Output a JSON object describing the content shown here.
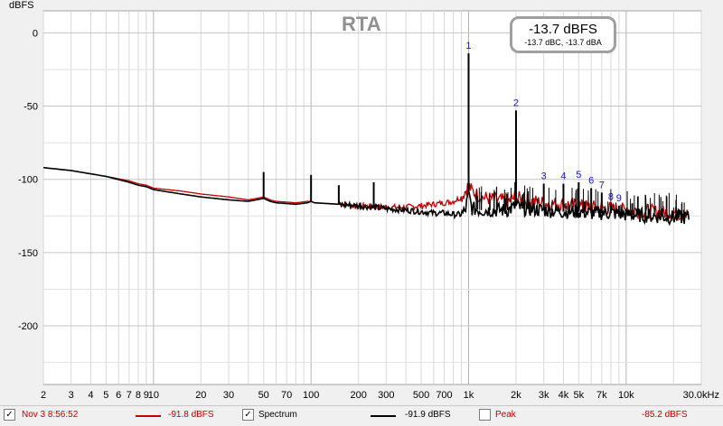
{
  "chart_data": {
    "type": "line",
    "title": "RTA",
    "ylabel": "dBFS",
    "xlabel": "",
    "x_scale": "log",
    "xlim": [
      2,
      30000
    ],
    "ylim": [
      -240,
      15
    ],
    "x_ticks": [
      {
        "v": 2,
        "label": "2"
      },
      {
        "v": 3,
        "label": "3"
      },
      {
        "v": 4,
        "label": "4"
      },
      {
        "v": 5,
        "label": "5"
      },
      {
        "v": 6,
        "label": "6"
      },
      {
        "v": 7,
        "label": "7"
      },
      {
        "v": 8,
        "label": "8"
      },
      {
        "v": 9,
        "label": "9"
      },
      {
        "v": 10,
        "label": "10"
      },
      {
        "v": 20,
        "label": "20"
      },
      {
        "v": 30,
        "label": "30"
      },
      {
        "v": 50,
        "label": "50"
      },
      {
        "v": 70,
        "label": "70"
      },
      {
        "v": 100,
        "label": "100"
      },
      {
        "v": 200,
        "label": "200"
      },
      {
        "v": 300,
        "label": "300"
      },
      {
        "v": 500,
        "label": "500"
      },
      {
        "v": 700,
        "label": "700"
      },
      {
        "v": 1000,
        "label": "1k"
      },
      {
        "v": 2000,
        "label": "2k"
      },
      {
        "v": 3000,
        "label": "3k"
      },
      {
        "v": 4000,
        "label": "4k"
      },
      {
        "v": 5000,
        "label": "5k"
      },
      {
        "v": 7000,
        "label": "7k"
      },
      {
        "v": 10000,
        "label": "10k"
      },
      {
        "v": 30000,
        "label": "30.0kHz"
      }
    ],
    "y_ticks": [
      {
        "v": 0,
        "label": "0"
      },
      {
        "v": -50,
        "label": "-50"
      },
      {
        "v": -100,
        "label": "-100"
      },
      {
        "v": -150,
        "label": "-150"
      },
      {
        "v": -200,
        "label": "-200"
      }
    ],
    "grid": true,
    "series": [
      {
        "name": "Nov 3 8:56:52",
        "color": "#c00000",
        "x": [
          2,
          3,
          5,
          7,
          8,
          9,
          10,
          15,
          20,
          30,
          40,
          45,
          50,
          55,
          60,
          80,
          95,
          100,
          105,
          150,
          200,
          300,
          400,
          500,
          600,
          700,
          800,
          900,
          950,
          1000,
          1050,
          1200,
          1500,
          1800,
          2000,
          2200,
          3000,
          4000,
          5000,
          6000,
          8000,
          10000,
          15000,
          20000,
          25000
        ],
        "y": [
          -92,
          -94,
          -98,
          -101,
          -103,
          -104,
          -106,
          -108,
          -110,
          -112,
          -114,
          -113,
          -112,
          -114,
          -115,
          -116,
          -115,
          -115,
          -116,
          -117,
          -118,
          -119,
          -119,
          -118,
          -117,
          -116,
          -115,
          -112,
          -108,
          -104,
          -108,
          -112,
          -114,
          -115,
          -112,
          -114,
          -116,
          -117,
          -118,
          -119,
          -120,
          -121,
          -122,
          -123,
          -124
        ]
      },
      {
        "name": "Spectrum",
        "color": "#000000",
        "x": [
          2,
          3,
          5,
          7,
          8,
          9,
          10,
          15,
          20,
          30,
          40,
          45,
          50,
          55,
          60,
          80,
          95,
          100,
          105,
          150,
          200,
          300,
          400,
          500,
          600,
          700,
          800,
          900,
          950,
          1000,
          1050,
          1200,
          1500,
          1800,
          2000,
          2200,
          3000,
          4000,
          5000,
          6000,
          8000,
          10000,
          15000,
          20000,
          25000
        ],
        "y": [
          -92,
          -94,
          -98,
          -102,
          -104,
          -105,
          -107,
          -110,
          -112,
          -114,
          -115,
          -114,
          -113,
          -115,
          -116,
          -117,
          -116,
          -115,
          -116,
          -117,
          -118,
          -120,
          -121,
          -122,
          -123,
          -123,
          -124,
          -124,
          -122,
          -110,
          -120,
          -121,
          -121,
          -121,
          -118,
          -120,
          -121,
          -122,
          -122,
          -123,
          -123,
          -124,
          -125,
          -126,
          -126
        ]
      }
    ],
    "peaks": [
      {
        "label": "",
        "x": 50,
        "y": -95
      },
      {
        "label": "",
        "x": 100,
        "y": -97
      },
      {
        "label": "",
        "x": 150,
        "y": -104
      },
      {
        "label": "",
        "x": 250,
        "y": -102
      },
      {
        "label": "1",
        "x": 1000,
        "y": -14
      },
      {
        "label": "2",
        "x": 2000,
        "y": -53
      },
      {
        "label": "3",
        "x": 3000,
        "y": -103
      },
      {
        "label": "4",
        "x": 4000,
        "y": -103
      },
      {
        "label": "5",
        "x": 5000,
        "y": -102
      },
      {
        "label": "6",
        "x": 6000,
        "y": -106
      },
      {
        "label": "7",
        "x": 7000,
        "y": -109
      },
      {
        "label": "8",
        "x": 8000,
        "y": -117
      },
      {
        "label": "9",
        "x": 9000,
        "y": -118
      }
    ],
    "peak_label_color": "#1a1ab4"
  },
  "readout": {
    "main": "-13.7 dBFS",
    "sub": "-13.7 dBC, -13.7 dBA"
  },
  "legend": {
    "item1": {
      "checked": "✓",
      "name": "Nov 3 8:56:52",
      "value": "-91.8 dBFS",
      "color": "#c00000"
    },
    "item2": {
      "checked": "✓",
      "name": "Spectrum",
      "value": "-91.9 dBFS",
      "color": "#000000"
    },
    "item3": {
      "checked": "",
      "name": "Peak",
      "value": "-85.2 dBFS",
      "color": "#c00000"
    }
  }
}
